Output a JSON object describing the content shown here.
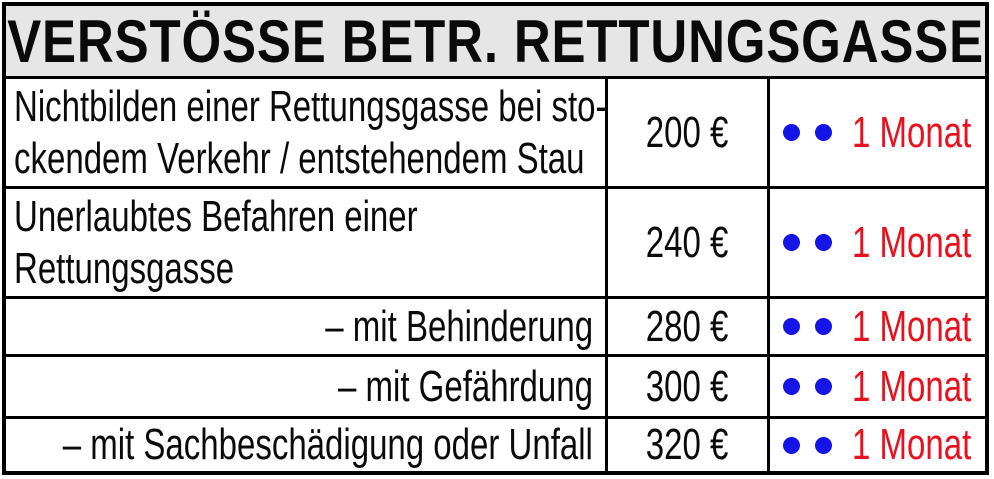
{
  "title": "VERSTÖSSE BETR. RETTUNGSGASSE",
  "rows": [
    {
      "description_line1": "Nichtbilden einer Rettungsgasse bei sto-",
      "description_line2": "ckendem Verkehr / entstehendem Stau",
      "fine": "200 €",
      "points": 2,
      "ban": "1 Monat"
    },
    {
      "description_line1": "Unerlaubtes Befahren einer",
      "description_line2": "Rettungsgasse",
      "fine": "240 €",
      "points": 2,
      "ban": "1 Monat"
    },
    {
      "description_line1": "– mit Behinderung",
      "fine": "280 €",
      "points": 2,
      "ban": "1 Monat"
    },
    {
      "description_line1": "– mit Gefährdung",
      "fine": "300 €",
      "points": 2,
      "ban": "1 Monat"
    },
    {
      "description_line1": "– mit Sachbeschädigung oder Unfall",
      "fine": "320 €",
      "points": 2,
      "ban": "1 Monat"
    }
  ],
  "colors": {
    "header_bg": "#e6e6e6",
    "border": "#000000",
    "blue_point": "#1414e6",
    "red_ban": "#e8101c"
  }
}
